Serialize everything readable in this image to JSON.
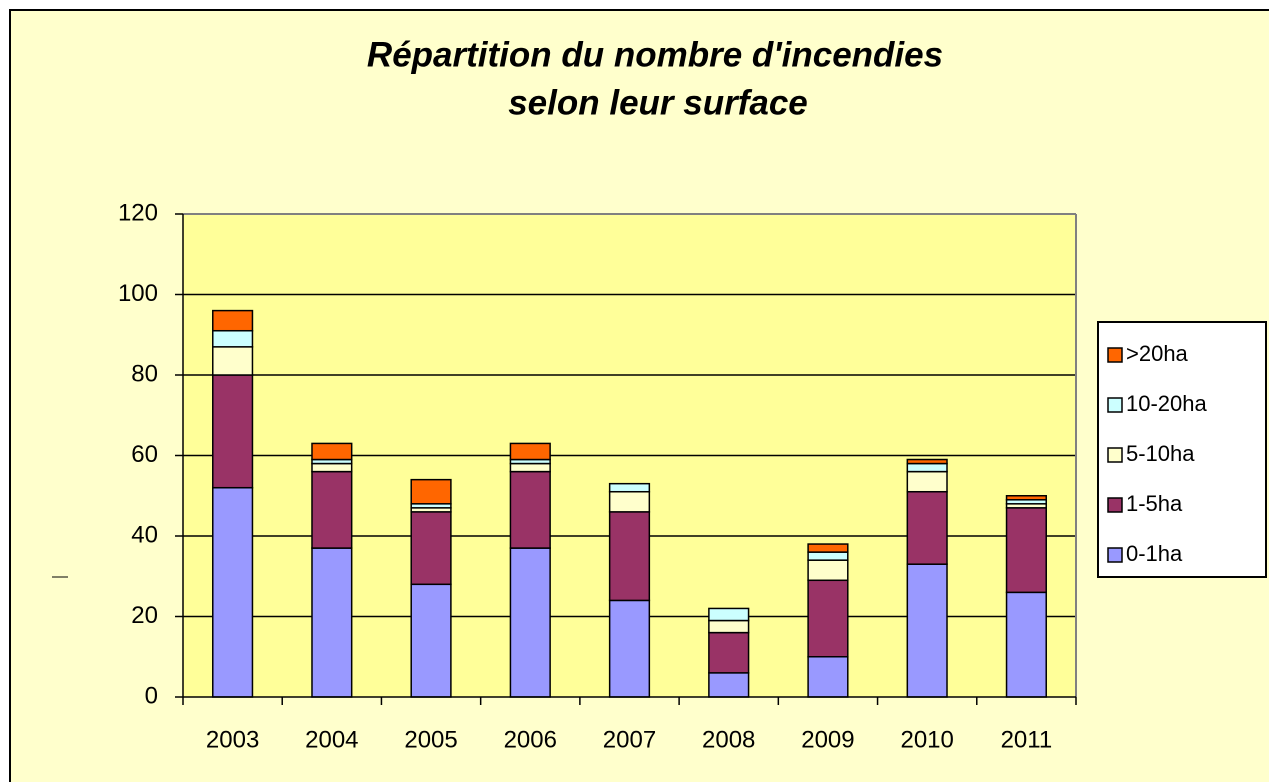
{
  "chart_data": {
    "type": "stacked_bar",
    "title": [
      "Répartition du nombre d'incendies",
      "selon leur surface"
    ],
    "categories": [
      "2003",
      "2004",
      "2005",
      "2006",
      "2007",
      "2008",
      "2009",
      "2010",
      "2011"
    ],
    "series": [
      {
        "name": "0-1ha",
        "color": "#9999ff",
        "values": [
          52,
          37,
          28,
          37,
          24,
          6,
          10,
          33,
          26
        ]
      },
      {
        "name": "1-5ha",
        "color": "#993366",
        "values": [
          28,
          19,
          18,
          19,
          22,
          10,
          19,
          18,
          21
        ]
      },
      {
        "name": "5-10ha",
        "color": "#ffffcc",
        "values": [
          7,
          2,
          1,
          2,
          5,
          3,
          5,
          5,
          1
        ]
      },
      {
        "name": "10-20ha",
        "color": "#ccffff",
        "values": [
          4,
          1,
          1,
          1,
          2,
          3,
          2,
          2,
          1
        ]
      },
      {
        "name": ">20ha",
        "color": "#ff6600",
        "values": [
          5,
          4,
          6,
          4,
          0,
          0,
          2,
          1,
          1
        ]
      }
    ],
    "ylim": [
      0,
      120
    ],
    "yticks": [
      0,
      20,
      40,
      60,
      80,
      100,
      120
    ],
    "grid": true,
    "legend": "right"
  }
}
